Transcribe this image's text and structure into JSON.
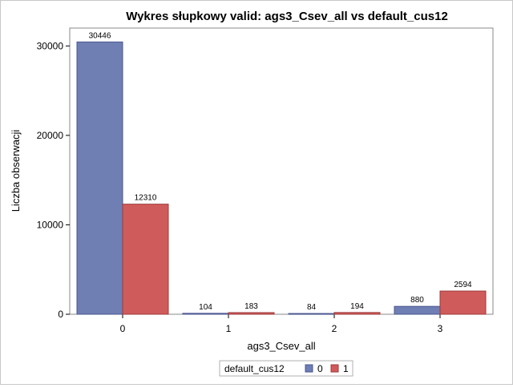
{
  "chart_data": {
    "type": "bar",
    "title": "Wykres słupkowy valid: ags3_Csev_all vs default_cus12",
    "xlabel": "ags3_Csev_all",
    "ylabel": "Liczba obserwacji",
    "categories": [
      "0",
      "1",
      "2",
      "3"
    ],
    "series": [
      {
        "name": "0",
        "values": [
          30446,
          104,
          84,
          880
        ],
        "color": "#6f7eb3"
      },
      {
        "name": "1",
        "values": [
          12310,
          183,
          194,
          2594
        ],
        "color": "#d05b5b"
      }
    ],
    "yticks": [
      0,
      10000,
      20000,
      30000
    ],
    "ylim": [
      0,
      32000
    ],
    "grid": false,
    "legend": {
      "title": "default_cus12",
      "position": "bottom-center"
    },
    "data_labels": true
  }
}
